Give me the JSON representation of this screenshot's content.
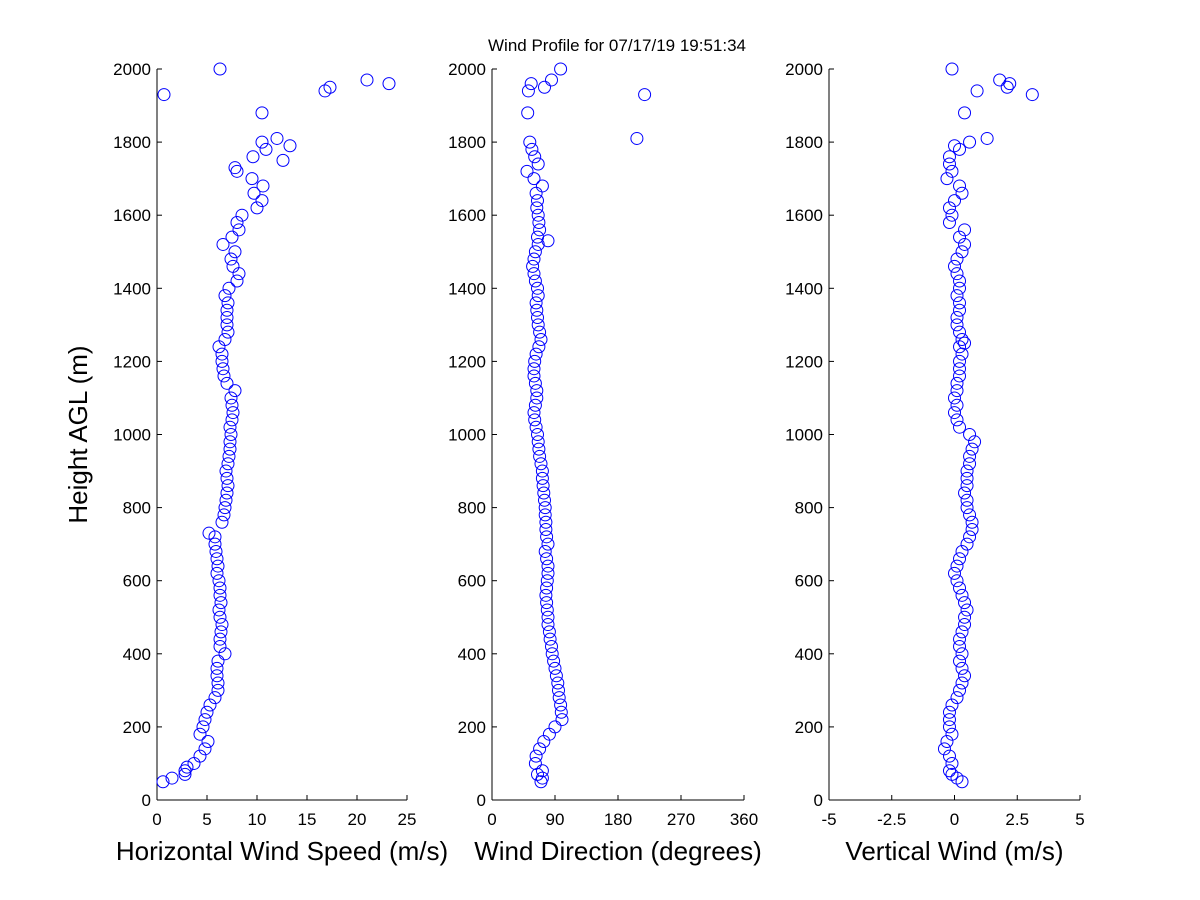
{
  "chart_data": [
    {
      "type": "scatter",
      "title": "Wind Profile for  07/17/19 19:51:34",
      "xlabel": "Horizontal Wind Speed (m/s)",
      "ylabel": "Height AGL (m)",
      "color": "#0000ff",
      "xlim": [
        0,
        25
      ],
      "xticks": [
        0,
        5,
        10,
        15,
        20,
        25
      ],
      "ylim": [
        0,
        2000
      ],
      "yticks": [
        0,
        200,
        400,
        600,
        800,
        1000,
        1200,
        1400,
        1600,
        1800,
        2000
      ],
      "x": [
        0.6,
        1.5,
        2.8,
        2.8,
        3.0,
        3.7,
        4.3,
        4.8,
        5.1,
        4.3,
        4.6,
        4.8,
        5.0,
        5.3,
        5.8,
        6.1,
        6.1,
        6.0,
        6.0,
        6.1,
        6.8,
        6.3,
        6.3,
        6.4,
        6.5,
        6.3,
        6.2,
        6.4,
        6.3,
        6.3,
        6.2,
        6.0,
        6.1,
        6.0,
        5.9,
        5.8,
        5.8,
        5.2,
        6.5,
        6.7,
        6.8,
        6.9,
        7.0,
        7.1,
        7.0,
        6.9,
        7.1,
        7.2,
        7.3,
        7.3,
        7.4,
        7.3,
        7.5,
        7.6,
        7.5,
        7.4,
        7.8,
        7.0,
        6.7,
        6.6,
        6.5,
        6.5,
        6.2,
        6.8,
        7.1,
        7.0,
        7.0,
        7.0,
        7.1,
        6.8,
        7.2,
        8.0,
        8.2,
        7.6,
        7.4,
        7.8,
        6.6,
        7.5,
        8.2,
        8.0,
        8.5,
        10.0,
        10.5,
        9.7,
        10.6,
        9.5,
        8.0,
        7.8,
        12.6,
        9.6,
        10.9,
        10.5,
        12.0,
        13.3,
        10.5,
        0.7,
        16.8,
        17.3,
        23.2,
        21.0,
        6.3
      ],
      "y": [
        50,
        60,
        70,
        80,
        90,
        100,
        120,
        140,
        160,
        180,
        200,
        220,
        240,
        260,
        280,
        300,
        320,
        340,
        360,
        380,
        400,
        420,
        440,
        460,
        480,
        500,
        520,
        540,
        560,
        580,
        600,
        620,
        640,
        660,
        680,
        700,
        720,
        730,
        760,
        780,
        800,
        820,
        840,
        860,
        880,
        900,
        920,
        940,
        960,
        980,
        1000,
        1020,
        1040,
        1060,
        1080,
        1100,
        1120,
        1140,
        1160,
        1180,
        1200,
        1220,
        1240,
        1260,
        1280,
        1300,
        1320,
        1340,
        1360,
        1380,
        1400,
        1420,
        1440,
        1460,
        1480,
        1500,
        1520,
        1540,
        1560,
        1580,
        1600,
        1620,
        1640,
        1660,
        1680,
        1700,
        1720,
        1730,
        1750,
        1760,
        1780,
        1800,
        1810,
        1790,
        1880,
        1930,
        1940,
        1950,
        1960,
        1970,
        2000
      ]
    },
    {
      "type": "scatter",
      "xlabel": "Wind Direction (degrees)",
      "color": "#0000ff",
      "xlim": [
        0,
        360
      ],
      "xticks": [
        0,
        90,
        180,
        270,
        360
      ],
      "ylim": [
        0,
        2000
      ],
      "yticks": [
        0,
        200,
        400,
        600,
        800,
        1000,
        1200,
        1400,
        1600,
        1800,
        2000
      ],
      "x": [
        70,
        72,
        65,
        72,
        62,
        63,
        68,
        74,
        82,
        90,
        100,
        99,
        98,
        96,
        95,
        94,
        92,
        90,
        88,
        86,
        85,
        83,
        82,
        80,
        80,
        79,
        78,
        77,
        78,
        79,
        80,
        80,
        78,
        76,
        80,
        78,
        77,
        77,
        76,
        76,
        75,
        74,
        73,
        72,
        72,
        70,
        68,
        67,
        66,
        65,
        63,
        61,
        60,
        62,
        64,
        64,
        62,
        60,
        60,
        61,
        63,
        67,
        70,
        68,
        66,
        65,
        64,
        63,
        66,
        65,
        62,
        60,
        58,
        60,
        62,
        66,
        80,
        65,
        68,
        67,
        66,
        64,
        65,
        63,
        72,
        60,
        50,
        66,
        61,
        57,
        54,
        207,
        51,
        218,
        52,
        75,
        56,
        85,
        98
      ],
      "y": [
        50,
        60,
        70,
        80,
        100,
        120,
        140,
        160,
        180,
        200,
        220,
        240,
        260,
        280,
        300,
        320,
        340,
        360,
        380,
        400,
        420,
        440,
        460,
        480,
        500,
        520,
        540,
        560,
        580,
        600,
        620,
        640,
        660,
        680,
        700,
        720,
        740,
        760,
        780,
        800,
        820,
        840,
        860,
        880,
        900,
        920,
        940,
        960,
        980,
        1000,
        1020,
        1040,
        1060,
        1080,
        1100,
        1120,
        1140,
        1160,
        1180,
        1200,
        1220,
        1240,
        1260,
        1280,
        1300,
        1320,
        1340,
        1360,
        1380,
        1400,
        1420,
        1440,
        1460,
        1480,
        1500,
        1520,
        1530,
        1540,
        1560,
        1580,
        1600,
        1620,
        1640,
        1660,
        1680,
        1700,
        1720,
        1740,
        1760,
        1780,
        1800,
        1810,
        1880,
        1930,
        1940,
        1950,
        1960,
        1970,
        2000
      ]
    },
    {
      "type": "scatter",
      "xlabel": "Vertical Wind (m/s)",
      "color": "#0000ff",
      "xlim": [
        -5,
        5
      ],
      "xticks": [
        -5,
        -2.5,
        0,
        2.5,
        5
      ],
      "ylim": [
        0,
        2000
      ],
      "yticks": [
        0,
        200,
        400,
        600,
        800,
        1000,
        1200,
        1400,
        1600,
        1800,
        2000
      ],
      "x": [
        0.3,
        0.1,
        -0.1,
        -0.2,
        -0.1,
        -0.2,
        -0.4,
        -0.3,
        -0.1,
        -0.2,
        -0.2,
        -0.2,
        -0.1,
        0.1,
        0.2,
        0.3,
        0.4,
        0.3,
        0.2,
        0.3,
        0.2,
        0.2,
        0.3,
        0.4,
        0.4,
        0.5,
        0.4,
        0.3,
        0.2,
        0.1,
        0.0,
        0.1,
        0.2,
        0.3,
        0.5,
        0.6,
        0.7,
        0.7,
        0.6,
        0.5,
        0.5,
        0.4,
        0.5,
        0.5,
        0.5,
        0.6,
        0.6,
        0.7,
        0.8,
        0.6,
        0.2,
        0.1,
        0.0,
        0.1,
        0.0,
        0.1,
        0.1,
        0.2,
        0.2,
        0.2,
        0.3,
        0.2,
        0.4,
        0.3,
        0.2,
        0.1,
        0.1,
        0.2,
        0.2,
        0.1,
        0.2,
        0.2,
        0.1,
        0.0,
        0.1,
        0.3,
        0.4,
        0.2,
        0.4,
        -0.2,
        -0.1,
        -0.2,
        0.0,
        0.3,
        0.2,
        -0.3,
        -0.1,
        -0.2,
        -0.2,
        0.2,
        0.0,
        0.6,
        1.3,
        0.4,
        3.1,
        2.1,
        2.2,
        0.9,
        1.8,
        -0.1
      ],
      "y": [
        50,
        60,
        70,
        80,
        100,
        120,
        140,
        160,
        180,
        200,
        220,
        240,
        260,
        280,
        300,
        320,
        340,
        360,
        380,
        400,
        420,
        440,
        460,
        480,
        500,
        520,
        540,
        560,
        580,
        600,
        620,
        640,
        660,
        680,
        700,
        720,
        740,
        760,
        780,
        800,
        820,
        840,
        860,
        880,
        900,
        920,
        940,
        960,
        980,
        1000,
        1020,
        1040,
        1060,
        1080,
        1100,
        1120,
        1140,
        1160,
        1180,
        1200,
        1220,
        1240,
        1250,
        1260,
        1280,
        1300,
        1320,
        1340,
        1360,
        1380,
        1400,
        1420,
        1440,
        1460,
        1480,
        1500,
        1520,
        1540,
        1560,
        1580,
        1600,
        1620,
        1640,
        1660,
        1680,
        1700,
        1720,
        1740,
        1760,
        1780,
        1790,
        1800,
        1810,
        1880,
        1930,
        1950,
        1960,
        1940,
        1970,
        2000
      ]
    }
  ]
}
